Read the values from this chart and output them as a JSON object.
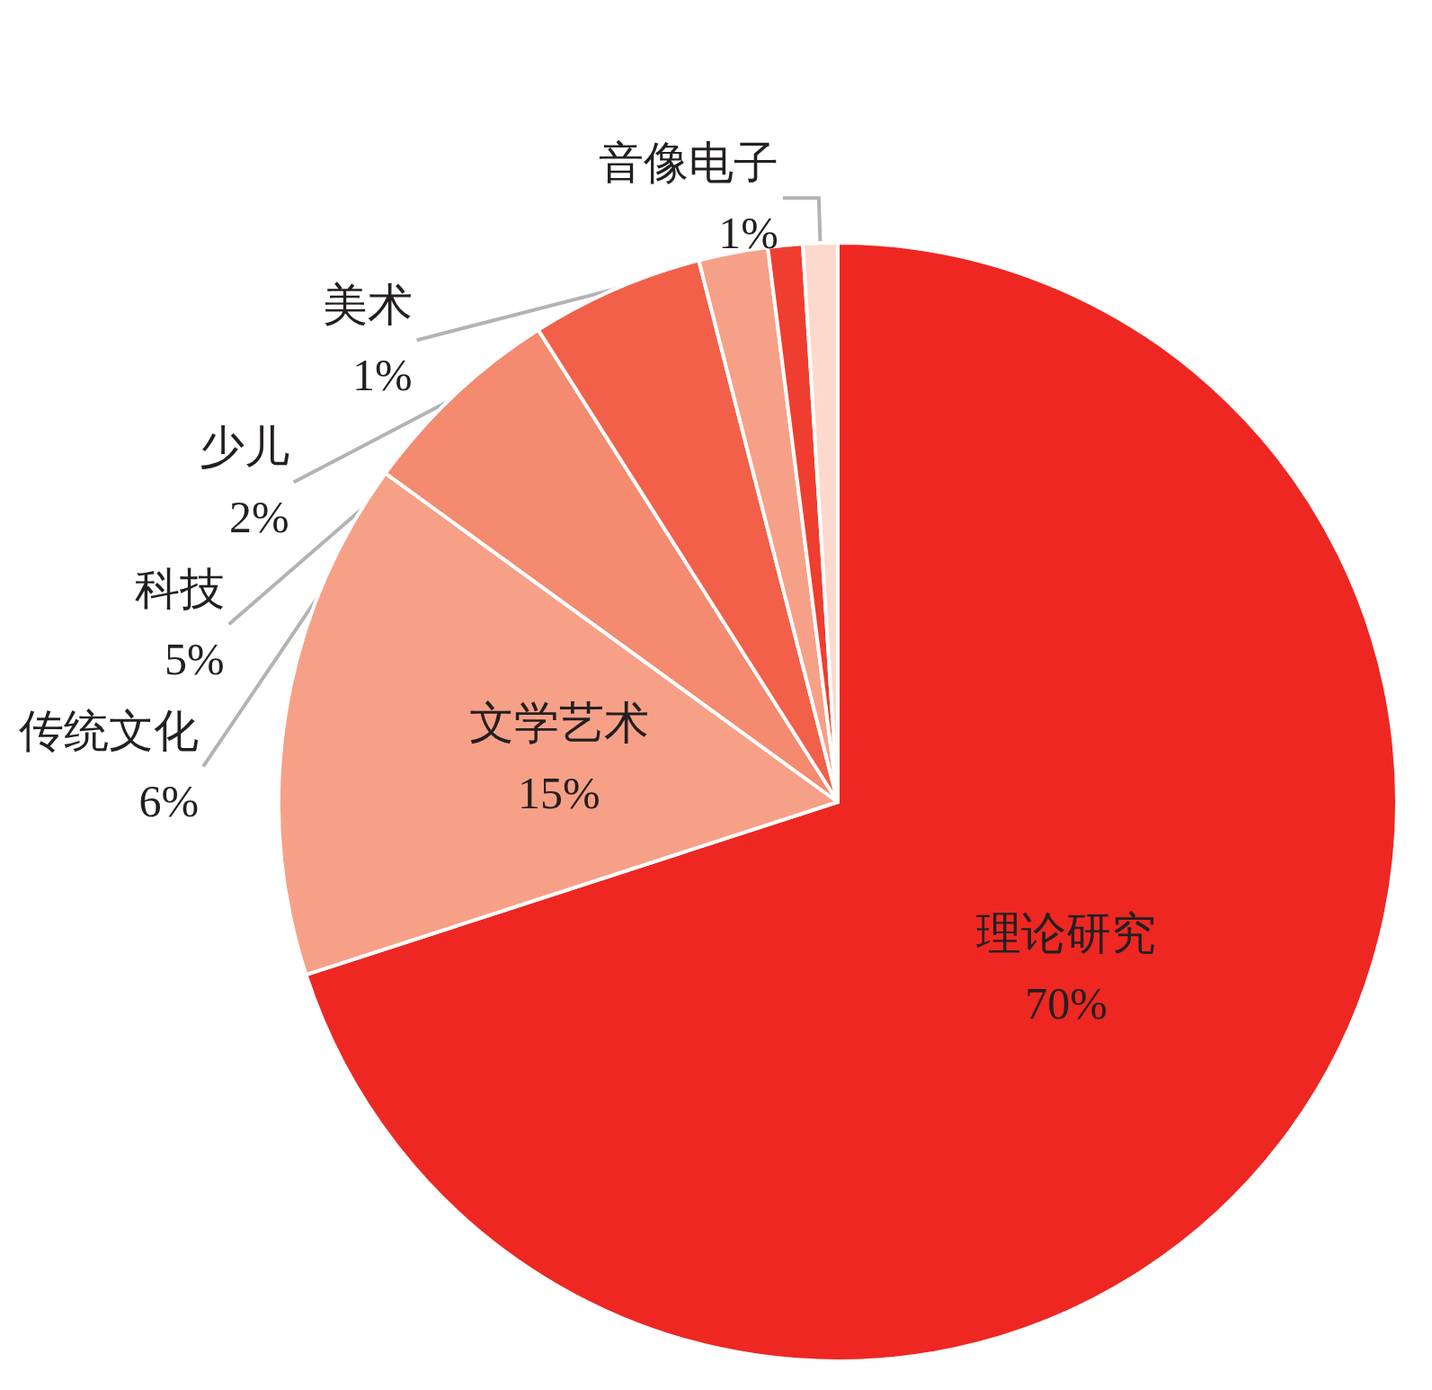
{
  "chart_data": {
    "type": "pie",
    "categories": [
      "理论研究",
      "文学艺术",
      "传统文化",
      "科技",
      "少儿",
      "美术",
      "音像电子"
    ],
    "values": [
      70,
      15,
      6,
      5,
      2,
      1,
      1
    ],
    "value_labels": [
      "70%",
      "15%",
      "6%",
      "5%",
      "2%",
      "1%",
      "1%"
    ],
    "colors": [
      "#ee2722",
      "#f7a088",
      "#f48a70",
      "#f26049",
      "#f7a088",
      "#ef3e2f",
      "#fcd9cc"
    ],
    "legend": false
  }
}
